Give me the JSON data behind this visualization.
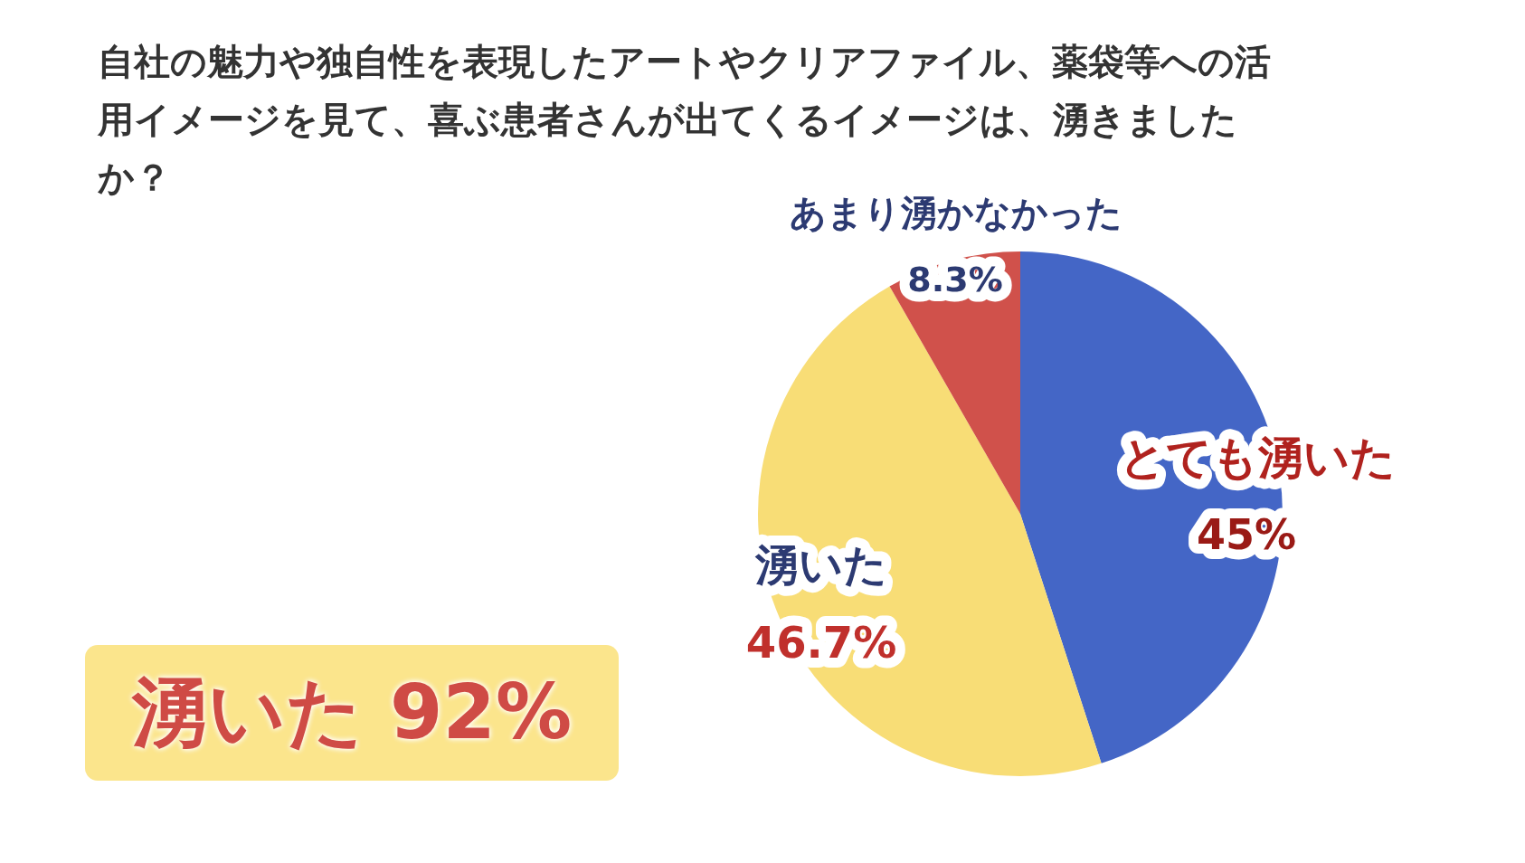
{
  "chart_data": {
    "type": "pie",
    "title": "自社の魅力や独自性を表現したアートやクリアファイル、薬袋等への活用イメージを見て、喜ぶ患者さんが出てくるイメージは、湧きましたか？",
    "categories": [
      "とても湧いた",
      "湧いた",
      "あまり湧かなかった"
    ],
    "values": [
      45,
      46.7,
      8.3
    ],
    "colors": [
      "#4466c6",
      "#f8dd76",
      "#d0514b"
    ],
    "value_labels": [
      "45%",
      "46.7%",
      "8.3%"
    ],
    "annotations": [
      "湧いた 92%"
    ],
    "legend": false
  }
}
